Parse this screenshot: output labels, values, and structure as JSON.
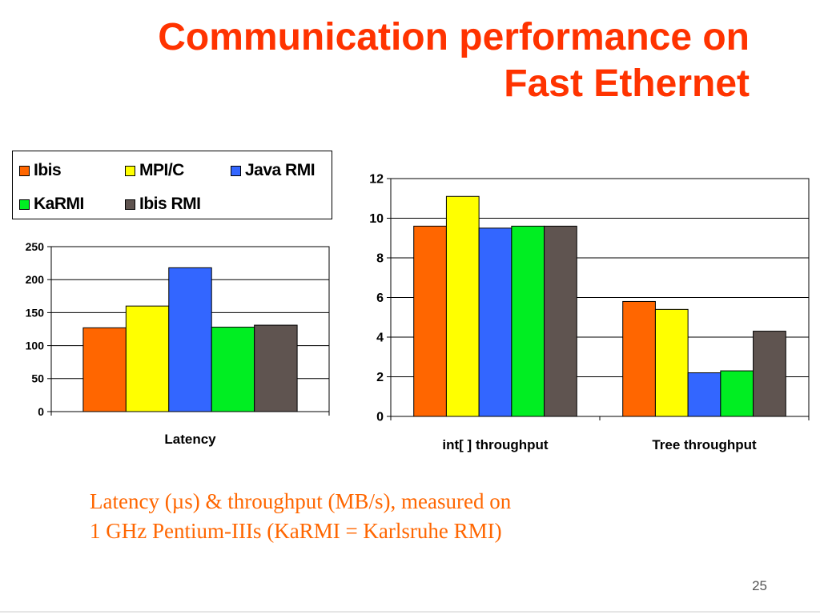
{
  "slide": {
    "title_line1": "Communication performance on",
    "title_line2": "Fast Ethernet",
    "caption_line1": "Latency (µs) & throughput (MB/s), measured on",
    "caption_line2": "1 GHz Pentium-IIIs   (KaRMI = Karlsruhe RMI)",
    "page_number": "25"
  },
  "legend": [
    {
      "name": "Ibis",
      "color": "#ff6600"
    },
    {
      "name": "MPI/C",
      "color": "#ffff00"
    },
    {
      "name": "Java RMI",
      "color": "#3366ff"
    },
    {
      "name": "KaRMI",
      "color": "#00ee22"
    },
    {
      "name": "Ibis RMI",
      "color": "#5f5450"
    }
  ],
  "chart_data": [
    {
      "type": "bar",
      "categories": [
        "Latency"
      ],
      "series": [
        {
          "name": "Ibis",
          "values": [
            127
          ]
        },
        {
          "name": "MPI/C",
          "values": [
            160
          ]
        },
        {
          "name": "Java RMI",
          "values": [
            218
          ]
        },
        {
          "name": "KaRMI",
          "values": [
            128
          ]
        },
        {
          "name": "Ibis RMI",
          "values": [
            131
          ]
        }
      ],
      "ylim": [
        0,
        250
      ],
      "yticks": [
        0,
        50,
        100,
        150,
        200,
        250
      ],
      "grid": true,
      "legend_position": "top"
    },
    {
      "type": "bar",
      "categories": [
        "int[ ] throughput",
        "Tree throughput"
      ],
      "series": [
        {
          "name": "Ibis",
          "values": [
            9.6,
            5.8
          ]
        },
        {
          "name": "MPI/C",
          "values": [
            11.1,
            5.4
          ]
        },
        {
          "name": "Java RMI",
          "values": [
            9.5,
            2.2
          ]
        },
        {
          "name": "KaRMI",
          "values": [
            9.6,
            2.3
          ]
        },
        {
          "name": "Ibis RMI",
          "values": [
            9.6,
            4.3
          ]
        }
      ],
      "ylim": [
        0,
        12
      ],
      "yticks": [
        0,
        2,
        4,
        6,
        8,
        10,
        12
      ],
      "grid": true
    }
  ]
}
